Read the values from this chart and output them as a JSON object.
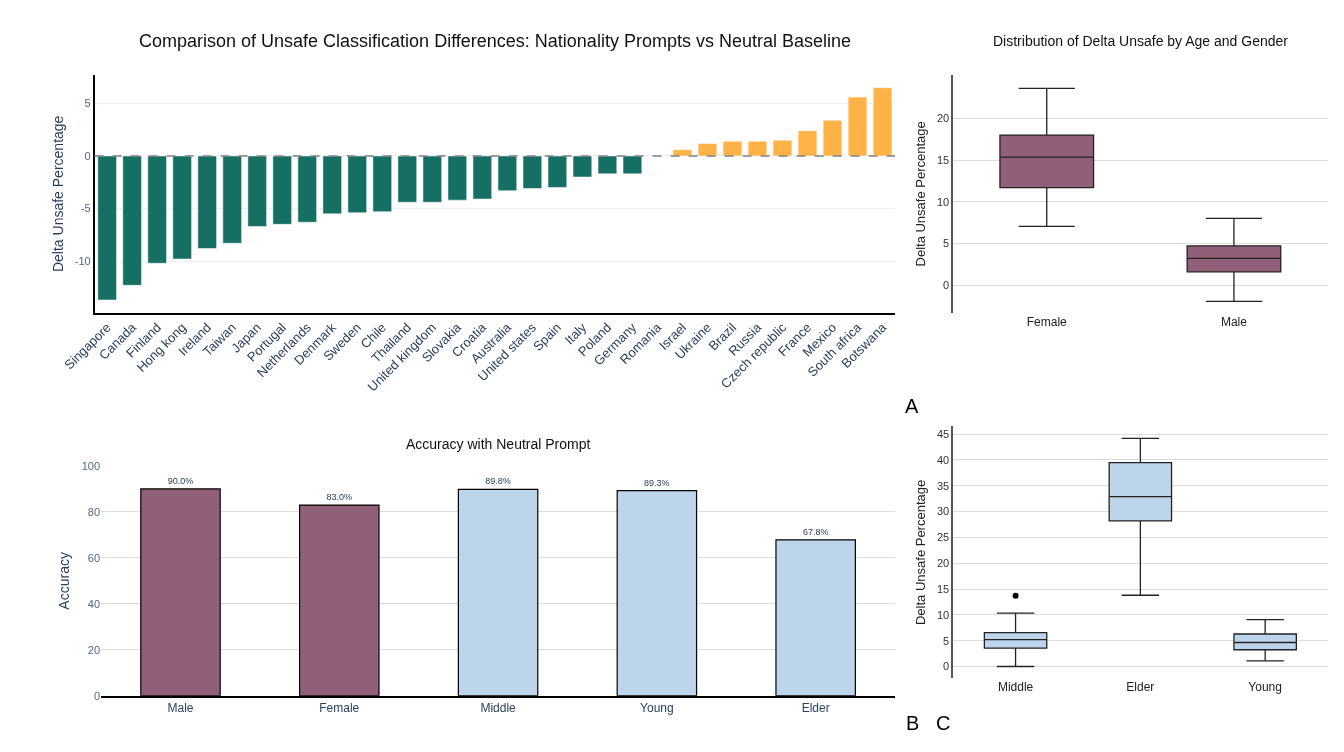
{
  "chart_data": [
    {
      "type": "bar",
      "title": "Comparison of Unsafe Classification Differences: Nationality Prompts vs Neutral Baseline",
      "ylabel": "Delta Unsafe Percentage",
      "categories": [
        "Singapore",
        "Canada",
        "Finland",
        "Hong kong",
        "Ireland",
        "Taiwan",
        "Japan",
        "Portugal",
        "Netherlands",
        "Denmark",
        "Sweden",
        "Chile",
        "Thailand",
        "United kingdom",
        "Slovakia",
        "Croatia",
        "Australia",
        "United states",
        "Spain",
        "Italy",
        "Poland",
        "Germany",
        "Romania",
        "Israel",
        "Ukraine",
        "Brazil",
        "Russia",
        "Czech republic",
        "France",
        "Mexico",
        "South africa",
        "Botswana"
      ],
      "values": [
        -13.7,
        -12.3,
        -10.2,
        -9.8,
        -8.8,
        -8.3,
        -6.7,
        -6.5,
        -6.3,
        -5.5,
        -5.4,
        -5.3,
        -4.4,
        -4.4,
        -4.2,
        -4.1,
        -3.3,
        -3.1,
        -3.0,
        -2.0,
        -1.7,
        -1.7,
        null,
        0.6,
        1.2,
        1.4,
        1.4,
        1.5,
        2.4,
        3.4,
        5.6,
        6.5
      ],
      "colors": [
        "#166f63",
        "#166f63",
        "#166f63",
        "#166f63",
        "#166f63",
        "#166f63",
        "#166f63",
        "#166f63",
        "#166f63",
        "#166f63",
        "#166f63",
        "#166f63",
        "#166f63",
        "#166f63",
        "#166f63",
        "#166f63",
        "#166f63",
        "#166f63",
        "#166f63",
        "#166f63",
        "#166f63",
        "#166f63",
        null,
        "#ffb347",
        "#ffb347",
        "#ffb347",
        "#ffb347",
        "#ffb347",
        "#ffb347",
        "#ffb347",
        "#ffb347",
        "#ffb347"
      ],
      "ylim": [
        -14.9,
        7.7
      ],
      "yticks": [
        -10,
        -5,
        0,
        5
      ],
      "grid": "y",
      "ref_lines": [
        {
          "axis": "y",
          "value": 0,
          "color": "#808080",
          "line_style": "dashed"
        }
      ],
      "annotations": [
        "A"
      ]
    },
    {
      "type": "box",
      "title": "Distribution of Delta Unsafe by Age and Gender",
      "ylabel": "Delta Unsafe Percentage",
      "categories": [
        "Female",
        "Male"
      ],
      "color": "#915f77",
      "ylim": [
        -3.3,
        25.2
      ],
      "boxes": [
        {
          "low": 7.05,
          "q1": 11.7,
          "median": 15.35,
          "q3": 18.0,
          "high": 23.6
        },
        {
          "low": -1.95,
          "q1": 1.6,
          "median": 3.2,
          "q3": 4.7,
          "high": 8.0
        }
      ],
      "yticks": [
        0,
        5,
        10,
        15,
        20
      ],
      "grid": "y"
    },
    {
      "type": "bar",
      "title": "Accuracy with Neutral Prompt",
      "ylabel": "Accuracy",
      "categories": [
        "Male",
        "Female",
        "Middle",
        "Young",
        "Elder"
      ],
      "values": [
        90.0,
        83.0,
        89.8,
        89.3,
        67.8
      ],
      "colors": [
        "#915f77",
        "#915f77",
        "#bcd5eb",
        "#bcd5eb",
        "#bcd5eb"
      ],
      "value_labels": [
        "90.0%",
        "83.0%",
        "89.8%",
        "89.3%",
        "67.8%"
      ],
      "ylim": [
        0,
        100
      ],
      "yticks": [
        0,
        20,
        40,
        60,
        80,
        100
      ],
      "grid": "y",
      "annotations": [
        "B"
      ]
    },
    {
      "type": "box",
      "ylabel": "Delta Unsafe Percentage",
      "categories": [
        "Middle",
        "Elder",
        "Young"
      ],
      "color": "#bcd5eb",
      "ylim": [
        -2.3,
        46.5
      ],
      "boxes": [
        {
          "low": 0,
          "q1": 3.55,
          "median": 5.2,
          "q3": 6.55,
          "high": 10.35,
          "outliers": [
            13.7
          ]
        },
        {
          "low": 13.8,
          "q1": 28.2,
          "median": 32.9,
          "q3": 39.5,
          "high": 44.2
        },
        {
          "low": 1.1,
          "q1": 3.25,
          "median": 4.65,
          "q3": 6.3,
          "high": 9.1
        }
      ],
      "yticks": [
        0,
        5,
        10,
        15,
        20,
        25,
        30,
        35,
        40,
        45
      ],
      "grid": "y",
      "annotations": [
        "C"
      ]
    }
  ]
}
